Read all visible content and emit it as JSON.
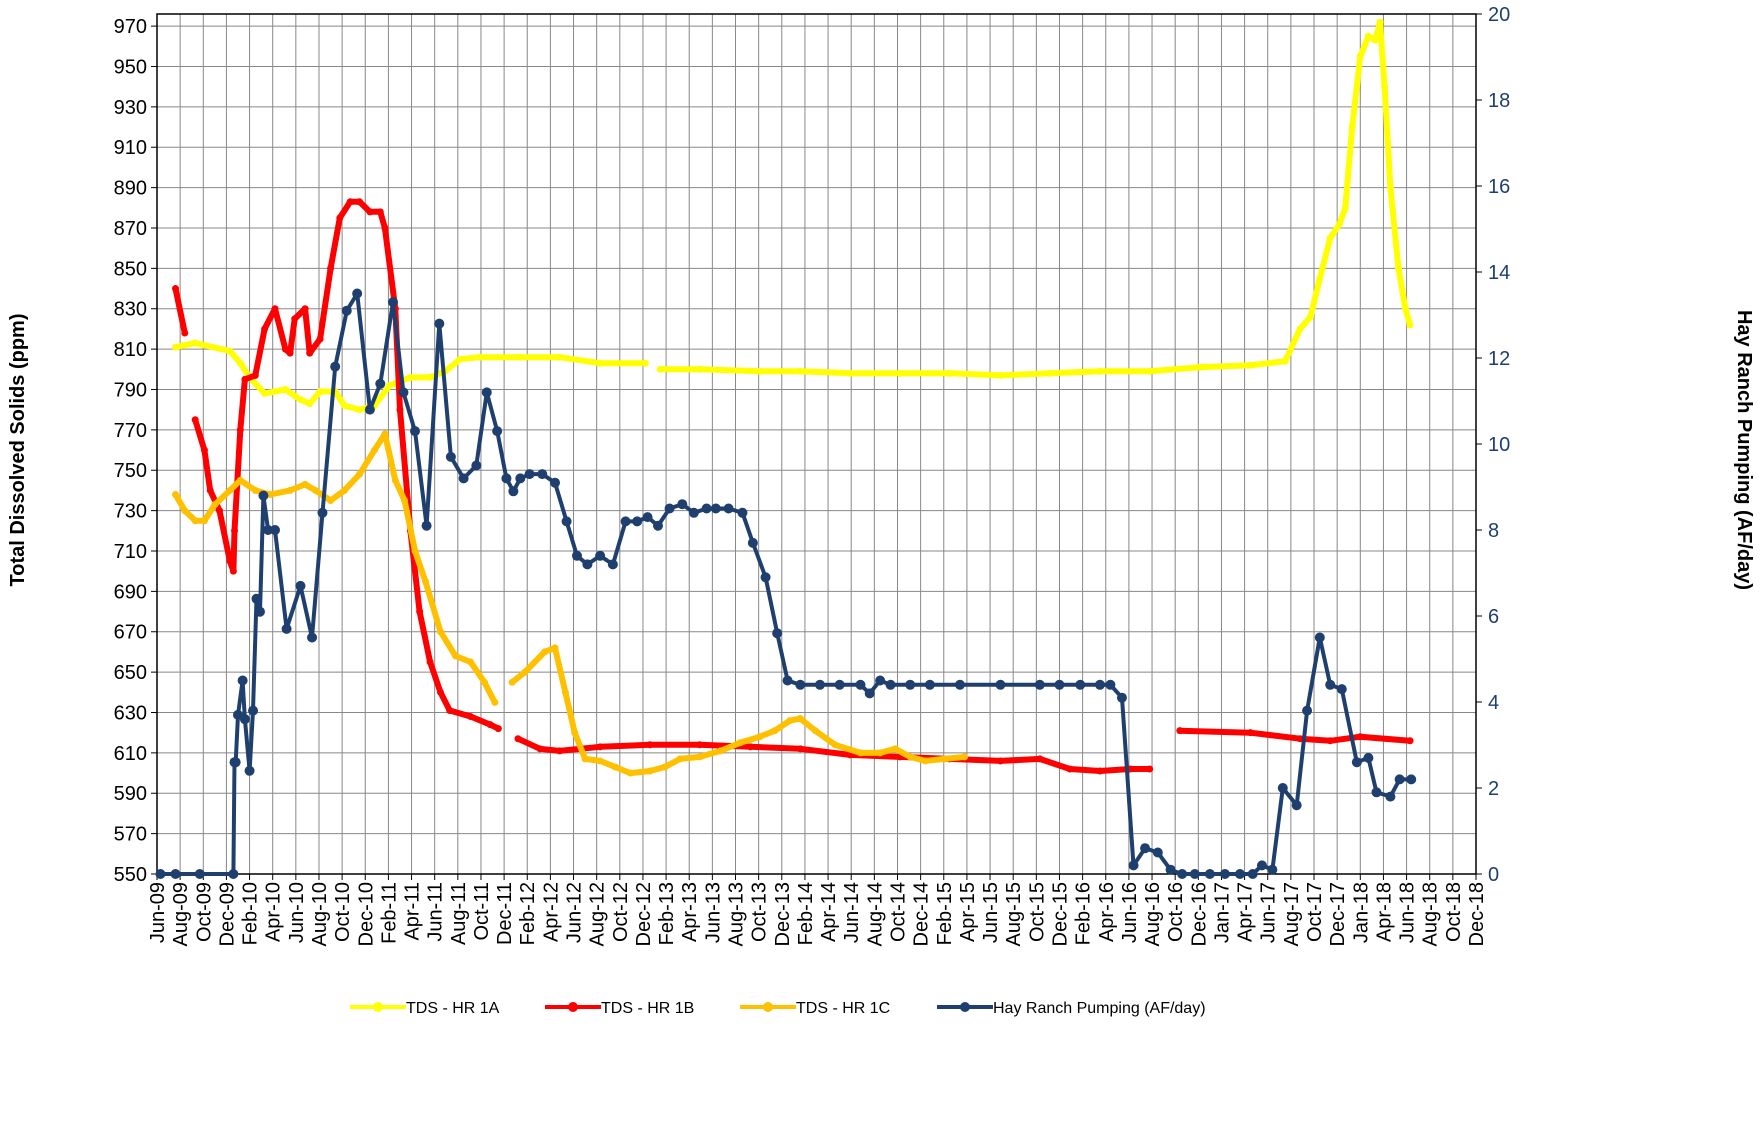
{
  "chart_data": {
    "type": "line",
    "ylabel": "Total Dissolved Solids (ppm)",
    "y2label": "Hay Ranch Pumping (AF/day)",
    "xlim": [
      0,
      114
    ],
    "ylim": [
      550,
      976
    ],
    "y2lim": [
      0,
      20
    ],
    "yticks": [
      550,
      570,
      590,
      610,
      630,
      650,
      670,
      690,
      710,
      730,
      750,
      770,
      790,
      810,
      830,
      850,
      870,
      890,
      910,
      930,
      950,
      970
    ],
    "y2ticks": [
      0,
      2,
      4,
      6,
      8,
      10,
      12,
      14,
      16,
      18,
      20
    ],
    "xticks": [
      {
        "value": 0,
        "label": "Jun-09"
      },
      {
        "value": 2,
        "label": "Aug-09"
      },
      {
        "value": 4,
        "label": "Oct-09"
      },
      {
        "value": 6,
        "label": "Dec-09"
      },
      {
        "value": 8,
        "label": "Feb-10"
      },
      {
        "value": 10,
        "label": "Apr-10"
      },
      {
        "value": 12,
        "label": "Jun-10"
      },
      {
        "value": 14,
        "label": "Aug-10"
      },
      {
        "value": 16,
        "label": "Oct-10"
      },
      {
        "value": 18,
        "label": "Dec-10"
      },
      {
        "value": 20,
        "label": "Feb-11"
      },
      {
        "value": 22,
        "label": "Apr-11"
      },
      {
        "value": 24,
        "label": "Jun-11"
      },
      {
        "value": 26,
        "label": "Aug-11"
      },
      {
        "value": 28,
        "label": "Oct-11"
      },
      {
        "value": 30,
        "label": "Dec-11"
      },
      {
        "value": 32,
        "label": "Feb-12"
      },
      {
        "value": 34,
        "label": "Apr-12"
      },
      {
        "value": 36,
        "label": "Jun-12"
      },
      {
        "value": 38,
        "label": "Aug-12"
      },
      {
        "value": 40,
        "label": "Oct-12"
      },
      {
        "value": 42,
        "label": "Dec-12"
      },
      {
        "value": 44,
        "label": "Feb-13"
      },
      {
        "value": 46,
        "label": "Apr-13"
      },
      {
        "value": 48,
        "label": "Jun-13"
      },
      {
        "value": 50,
        "label": "Aug-13"
      },
      {
        "value": 52,
        "label": "Oct-13"
      },
      {
        "value": 54,
        "label": "Dec-13"
      },
      {
        "value": 56,
        "label": "Feb-14"
      },
      {
        "value": 58,
        "label": "Apr-14"
      },
      {
        "value": 60,
        "label": "Jun-14"
      },
      {
        "value": 62,
        "label": "Aug-14"
      },
      {
        "value": 64,
        "label": "Oct-14"
      },
      {
        "value": 66,
        "label": "Dec-14"
      },
      {
        "value": 68,
        "label": "Feb-15"
      },
      {
        "value": 70,
        "label": "Apr-15"
      },
      {
        "value": 72,
        "label": "Jun-15"
      },
      {
        "value": 74,
        "label": "Aug-15"
      },
      {
        "value": 76,
        "label": "Oct-15"
      },
      {
        "value": 78,
        "label": "Dec-15"
      },
      {
        "value": 80,
        "label": "Feb-16"
      },
      {
        "value": 82,
        "label": "Apr-16"
      },
      {
        "value": 84,
        "label": "Jun-16"
      },
      {
        "value": 86,
        "label": "Aug-16"
      },
      {
        "value": 88,
        "label": "Oct-16"
      },
      {
        "value": 90,
        "label": "Dec-16"
      },
      {
        "value": 92,
        "label": "Jan-17"
      },
      {
        "value": 94,
        "label": "Apr-17"
      },
      {
        "value": 96,
        "label": "Jun-17"
      },
      {
        "value": 98,
        "label": "Aug-17"
      },
      {
        "value": 100,
        "label": "Oct-17"
      },
      {
        "value": 102,
        "label": "Dec-17"
      },
      {
        "value": 104,
        "label": "Jan-18"
      },
      {
        "value": 106,
        "label": "Apr-18"
      },
      {
        "value": 108,
        "label": "Jun-18"
      },
      {
        "value": 110,
        "label": "Aug-18"
      },
      {
        "value": 112,
        "label": "Oct-18"
      },
      {
        "value": 114,
        "label": "Dec-18"
      }
    ],
    "grid": true,
    "legend": "bottom",
    "series": [
      {
        "name": "TDS - HR 1A",
        "color": "#ffff00",
        "x": [
          1.6,
          3.3,
          6.3,
          7.2,
          8.0,
          9.3,
          11.1,
          12.4,
          13.2,
          14.1,
          15.4,
          16.2,
          17.5,
          18.8,
          20.1,
          21.9,
          23.6,
          24.9,
          26.2,
          27.9,
          31.4,
          34.8,
          38.3,
          42.2,
          42.6,
          43.5,
          46.9,
          52.1,
          55.6,
          59.9,
          64.2,
          68.5,
          72.9,
          77.2,
          81.5,
          85.8,
          90.1,
          94.5,
          97.5,
          98.8,
          99.7,
          100.5,
          101.4,
          102.2,
          102.7,
          103.3,
          104.0,
          104.7,
          105.3,
          105.7,
          106.1,
          106.6,
          107.3,
          107.9,
          108.3
        ],
        "values": [
          811,
          813,
          809,
          803,
          796,
          788,
          790,
          785,
          783,
          789,
          789,
          782,
          780,
          782,
          792,
          796,
          796,
          799,
          805,
          806,
          806,
          806,
          803,
          803,
          null,
          800,
          800,
          799,
          799,
          798,
          798,
          798,
          797,
          798,
          799,
          799,
          801,
          802,
          804,
          820,
          826,
          845,
          865,
          872,
          880,
          920,
          955,
          965,
          963,
          972,
          940,
          890,
          850,
          830,
          822
        ]
      },
      {
        "name": "TDS - HR 1B",
        "color": "#ff0000",
        "x": [
          1.6,
          2.4,
          2.9,
          3.3,
          4.1,
          4.6,
          5.4,
          6.3,
          6.6,
          6.7,
          7.2,
          7.6,
          8.5,
          9.3,
          10.2,
          11.1,
          11.5,
          11.9,
          12.8,
          13.2,
          14.1,
          15.0,
          15.8,
          16.7,
          17.5,
          18.4,
          19.3,
          19.7,
          20.6,
          21.0,
          21.9,
          22.7,
          23.6,
          24.5,
          25.3,
          27.1,
          28.8,
          29.5,
          30.3,
          31.2,
          33.1,
          34.8,
          38.3,
          42.6,
          46.9,
          51.3,
          55.6,
          59.9,
          64.2,
          68.5,
          72.9,
          76.3,
          78.9,
          81.5,
          84.1,
          85.8,
          87.0,
          88.4,
          94.5,
          98.8,
          101.4,
          104.0,
          108.3
        ],
        "values": [
          840,
          818,
          null,
          775,
          760,
          740,
          730,
          705,
          700,
          720,
          770,
          795,
          797,
          820,
          830,
          810,
          808,
          825,
          830,
          808,
          815,
          850,
          875,
          883,
          883,
          878,
          878,
          870,
          830,
          780,
          720,
          680,
          655,
          640,
          631,
          628,
          624,
          622,
          null,
          617,
          612,
          611,
          613,
          614,
          614,
          613,
          612,
          609,
          608,
          607,
          606,
          607,
          602,
          601,
          602,
          602,
          null,
          621,
          620,
          617,
          616,
          618,
          616
        ]
      },
      {
        "name": "TDS - HR 1C",
        "color": "#ffc000",
        "x": [
          1.6,
          2.4,
          3.3,
          4.1,
          5.0,
          6.3,
          7.2,
          8.5,
          9.8,
          11.5,
          12.8,
          13.7,
          15.0,
          16.2,
          17.5,
          18.8,
          19.7,
          20.6,
          21.4,
          22.3,
          23.2,
          24.5,
          25.8,
          27.1,
          28.3,
          29.2,
          30.0,
          30.7,
          31.8,
          33.5,
          34.4,
          35.3,
          36.1,
          37.0,
          38.3,
          39.6,
          40.9,
          42.6,
          43.9,
          45.2,
          46.9,
          48.7,
          50.4,
          52.1,
          53.4,
          54.7,
          55.6,
          56.9,
          58.6,
          60.8,
          62.5,
          63.8,
          65.1,
          66.4,
          68.1,
          69.8
        ],
        "values": [
          738,
          730,
          725,
          725,
          733,
          740,
          745,
          740,
          738,
          740,
          743,
          740,
          735,
          740,
          748,
          760,
          768,
          745,
          735,
          710,
          695,
          670,
          658,
          655,
          645,
          635,
          null,
          645,
          650,
          660,
          662,
          640,
          620,
          607,
          606,
          603,
          600,
          601,
          603,
          607,
          608,
          611,
          615,
          618,
          621,
          626,
          627,
          621,
          614,
          610,
          610,
          612,
          608,
          606,
          607,
          608
        ]
      },
      {
        "name": "Hay Ranch Pumping (AF/day)",
        "color": "#1f3f6f",
        "axis": "y2",
        "x": [
          0.3,
          1.6,
          3.7,
          6.6,
          6.7,
          6.8,
          7.0,
          7.4,
          7.6,
          8.0,
          8.3,
          8.6,
          8.9,
          9.2,
          9.6,
          10.2,
          11.2,
          12.4,
          13.4,
          14.3,
          15.4,
          16.4,
          17.3,
          18.4,
          19.3,
          20.4,
          21.3,
          22.3,
          23.3,
          24.4,
          25.4,
          26.5,
          27.6,
          28.5,
          29.4,
          30.2,
          30.8,
          31.4,
          32.2,
          33.3,
          34.4,
          35.4,
          36.3,
          37.2,
          38.3,
          39.4,
          40.5,
          41.5,
          42.4,
          43.3,
          44.3,
          45.4,
          46.4,
          47.5,
          48.3,
          49.4,
          50.6,
          51.5,
          52.6,
          53.6,
          54.5,
          55.6,
          57.3,
          59.0,
          60.8,
          61.6,
          62.5,
          63.4,
          65.1,
          66.8,
          69.4,
          72.9,
          76.3,
          78.0,
          79.8,
          81.5,
          82.4,
          83.4,
          84.4,
          85.4,
          86.5,
          87.6,
          88.6,
          89.7,
          91.0,
          92.3,
          93.6,
          94.7,
          95.5,
          96.4,
          97.3,
          98.5,
          99.4,
          100.5,
          101.4,
          102.4,
          103.7,
          104.7,
          105.4,
          106.6,
          107.4,
          108.4
        ],
        "values": [
          0,
          0,
          0,
          0,
          2.6,
          2.6,
          3.7,
          4.5,
          3.6,
          2.4,
          3.8,
          6.4,
          6.1,
          8.8,
          8.0,
          8.0,
          5.7,
          6.7,
          5.5,
          8.4,
          11.8,
          13.1,
          13.5,
          10.8,
          11.4,
          13.3,
          11.2,
          10.3,
          8.1,
          12.8,
          9.7,
          9.2,
          9.5,
          11.2,
          10.3,
          9.2,
          8.9,
          9.2,
          9.3,
          9.3,
          9.1,
          8.2,
          7.4,
          7.2,
          7.4,
          7.2,
          8.2,
          8.2,
          8.3,
          8.1,
          8.5,
          8.6,
          8.4,
          8.5,
          8.5,
          8.5,
          8.4,
          7.7,
          6.9,
          5.6,
          4.5,
          4.4,
          4.4,
          4.4,
          4.4,
          4.2,
          4.5,
          4.4,
          4.4,
          4.4,
          4.4,
          4.4,
          4.4,
          4.4,
          4.4,
          4.4,
          4.4,
          4.1,
          0.2,
          0.6,
          0.5,
          0.1,
          0,
          0,
          0,
          0,
          0,
          0,
          0.2,
          0.1,
          2.0,
          1.6,
          3.8,
          5.5,
          4.4,
          4.3,
          2.6,
          2.7,
          1.9,
          1.8,
          2.2,
          2.2
        ]
      }
    ]
  }
}
